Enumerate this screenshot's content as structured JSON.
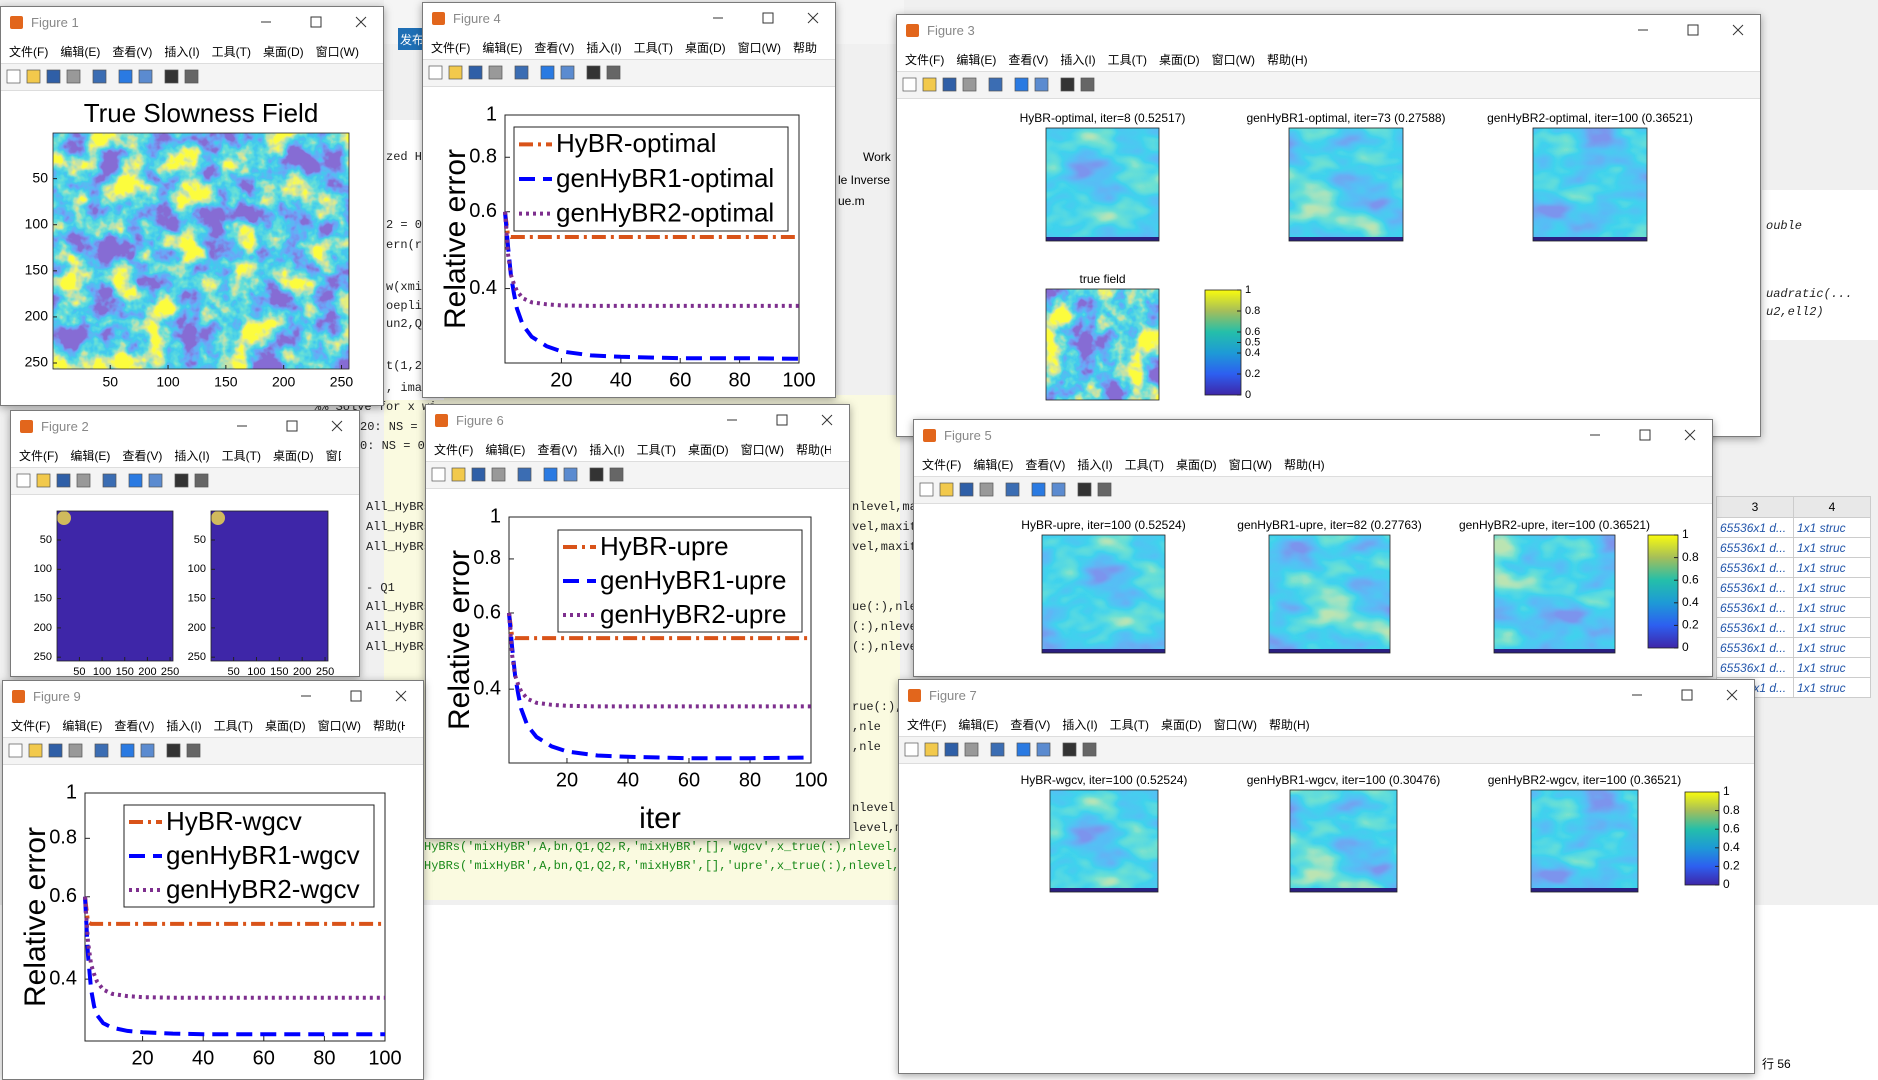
{
  "menu": [
    "文件(F)",
    "编辑(E)",
    "查看(V)",
    "插入(I)",
    "工具(T)",
    "桌面(D)",
    "窗口(W)",
    "帮助(H)"
  ],
  "background": {
    "toolbar_button": "发布",
    "tabs": [
      "Work",
      "le Inverse",
      "ue.m"
    ],
    "code": [
      "zed Hy",
      "2 = 0",
      "ern(r,",
      "w(xmi",
      "oepli",
      "un2,Q",
      "t(1,2",
      ", ima",
      "%% Solve for x wi",
      "20: NS =",
      "0: NS = 0",
      "All_HyBRs",
      "All_HyBRs",
      "All_HyBRs",
      "- Q1",
      "All_HyBRs",
      "All_HyBRs",
      "All_HyBRs",
      "HyBRs('mixHyBR',A,bn,Q1,Q2,R,'mixHyBR',[],'wgcv',x_true(:),nlevel,ma",
      "HyBRs('mixHyBR',A,bn,Q1,Q2,R,'mixHyBR',[],'upre',x_true(:),nlevel,ma",
      "nlevel,ma",
      "vel,maxit",
      "vel,maxit",
      "ue(:),nle",
      "(:),nlevel",
      "(:),nlevel",
      "rue(:),n",
      ",nle",
      ",nle",
      "nlevel",
      "level,m",
      "ouble",
      "uadratic(...",
      "u2,ell2)"
    ],
    "workspace": {
      "headers": [
        "3",
        "4"
      ],
      "rows": [
        [
          "65536x1 d...",
          "1x1 struc"
        ],
        [
          "65536x1 d...",
          "1x1 struc"
        ],
        [
          "65536x1 d...",
          "1x1 struc"
        ],
        [
          "65536x1 d...",
          "1x1 struc"
        ],
        [
          "65536x1 d...",
          "1x1 struc"
        ],
        [
          "65536x1 d...",
          "1x1 struc"
        ],
        [
          "65536x1 d...",
          "1x1 struc"
        ],
        [
          "65536x1 d...",
          "1x1 struc"
        ],
        [
          "65536x1 d...",
          "1x1 struc"
        ]
      ]
    },
    "status": "行 56"
  },
  "windows": [
    {
      "title": "Figure 1",
      "plots": [
        {
          "type": "heatmap",
          "title": "True Slowness Field",
          "xlim": [
            0.5,
            256.5
          ],
          "ylim": [
            0.5,
            256.5
          ],
          "xticks": [
            50,
            100,
            150,
            200,
            250
          ],
          "yticks": [
            50,
            100,
            150,
            200,
            250
          ]
        }
      ]
    },
    {
      "title": "Figure 2",
      "plots": [
        {
          "type": "heatmap",
          "xlim": [
            0.5,
            256.5
          ],
          "ylim": [
            0.5,
            256.5
          ],
          "xticks": [
            50,
            100,
            150,
            200,
            250
          ],
          "yticks": [
            50,
            100,
            150,
            200,
            250
          ]
        },
        {
          "type": "heatmap",
          "xlim": [
            0.5,
            256.5
          ],
          "ylim": [
            0.5,
            256.5
          ],
          "xticks": [
            50,
            100,
            150,
            200,
            250
          ],
          "yticks": [
            50,
            100,
            150,
            200,
            250
          ]
        }
      ]
    },
    {
      "title": "Figure 4",
      "plots": [
        {
          "type": "line",
          "ylabel": "Relative error",
          "log_y": true,
          "xlim": [
            1,
            100
          ],
          "xticks": [
            20,
            40,
            60,
            80,
            100
          ],
          "ylim": [
            0.27,
            1
          ],
          "yticks": [
            0.4,
            0.6,
            0.8,
            1
          ],
          "x": [
            1,
            2,
            3,
            4,
            5,
            7,
            10,
            15,
            20,
            30,
            40,
            60,
            80,
            100
          ],
          "series": [
            {
              "name": "HyBR-optimal",
              "color": "#d95319",
              "style": "dashdot",
              "values": [
                0.6,
                0.53,
                0.525,
                0.525,
                0.525,
                0.525,
                0.525,
                0.525,
                0.525,
                0.525,
                0.525,
                0.525,
                0.525,
                0.525
              ]
            },
            {
              "name": "genHyBR1-optimal",
              "color": "#0000ff",
              "style": "dashed",
              "values": [
                0.6,
                0.5,
                0.43,
                0.39,
                0.36,
                0.33,
                0.31,
                0.295,
                0.287,
                0.281,
                0.279,
                0.277,
                0.277,
                0.276
              ]
            },
            {
              "name": "genHyBR2-optimal",
              "color": "#7e2f8e",
              "style": "dotted",
              "values": [
                0.6,
                0.48,
                0.43,
                0.41,
                0.395,
                0.38,
                0.372,
                0.368,
                0.366,
                0.365,
                0.365,
                0.365,
                0.365,
                0.365
              ]
            }
          ]
        }
      ]
    },
    {
      "title": "Figure 3",
      "plots": [
        {
          "type": "heatmap",
          "title": "HyBR-optimal, iter=8 (0.52517)"
        },
        {
          "type": "heatmap",
          "title": "genHyBR1-optimal, iter=73 (0.27588)"
        },
        {
          "type": "heatmap",
          "title": "genHyBR2-optimal, iter=100 (0.36521)"
        },
        {
          "type": "heatmap",
          "title": "true field"
        },
        {
          "type": "colorbar",
          "lim": [
            0,
            1
          ],
          "ticks": [
            0,
            0.2,
            0.4,
            0.5,
            0.6,
            0.8,
            1
          ]
        }
      ]
    },
    {
      "title": "Figure 5",
      "plots": [
        {
          "type": "heatmap",
          "title": "HyBR-upre, iter=100 (0.52524)"
        },
        {
          "type": "heatmap",
          "title": "genHyBR1-upre, iter=82 (0.27763)"
        },
        {
          "type": "heatmap",
          "title": "genHyBR2-upre, iter=100 (0.36521)"
        },
        {
          "type": "colorbar",
          "lim": [
            0,
            1
          ],
          "ticks": [
            0,
            0.2,
            0.4,
            0.6,
            0.8,
            1
          ]
        }
      ]
    },
    {
      "title": "Figure 6",
      "plots": [
        {
          "type": "line",
          "ylabel": "Relative error",
          "xlabel": "iter",
          "log_y": true,
          "xlim": [
            1,
            100
          ],
          "xticks": [
            20,
            40,
            60,
            80,
            100
          ],
          "ylim": [
            0.27,
            1
          ],
          "yticks": [
            0.4,
            0.6,
            0.8,
            1
          ],
          "x": [
            1,
            2,
            3,
            4,
            5,
            7,
            10,
            15,
            20,
            30,
            40,
            60,
            80,
            100
          ],
          "series": [
            {
              "name": "HyBR-upre",
              "color": "#d95319",
              "style": "dashdot",
              "values": [
                0.6,
                0.53,
                0.525,
                0.525,
                0.525,
                0.525,
                0.525,
                0.525,
                0.525,
                0.525,
                0.525,
                0.525,
                0.525,
                0.525
              ]
            },
            {
              "name": "genHyBR1-upre",
              "color": "#0000ff",
              "style": "dashed",
              "values": [
                0.6,
                0.5,
                0.43,
                0.39,
                0.36,
                0.33,
                0.31,
                0.295,
                0.287,
                0.281,
                0.279,
                0.277,
                0.277,
                0.278
              ]
            },
            {
              "name": "genHyBR2-upre",
              "color": "#7e2f8e",
              "style": "dotted",
              "values": [
                0.6,
                0.48,
                0.43,
                0.41,
                0.395,
                0.38,
                0.372,
                0.368,
                0.366,
                0.365,
                0.365,
                0.365,
                0.365,
                0.365
              ]
            }
          ]
        }
      ]
    },
    {
      "title": "Figure 9",
      "plots": [
        {
          "type": "line",
          "ylabel": "Relative error",
          "log_y": true,
          "xlim": [
            1,
            100
          ],
          "xticks": [
            20,
            40,
            60,
            80,
            100
          ],
          "ylim": [
            0.295,
            1
          ],
          "yticks": [
            0.4,
            0.6,
            0.8,
            1
          ],
          "x": [
            1,
            2,
            3,
            4,
            5,
            7,
            10,
            15,
            20,
            30,
            40,
            60,
            80,
            100
          ],
          "series": [
            {
              "name": "HyBR-wgcv",
              "color": "#d95319",
              "style": "dashdot",
              "values": [
                0.6,
                0.53,
                0.525,
                0.525,
                0.525,
                0.525,
                0.525,
                0.525,
                0.525,
                0.525,
                0.525,
                0.525,
                0.525,
                0.525
              ]
            },
            {
              "name": "genHyBR1-wgcv",
              "color": "#0000ff",
              "style": "dashed",
              "values": [
                0.6,
                0.45,
                0.38,
                0.35,
                0.335,
                0.322,
                0.315,
                0.31,
                0.308,
                0.306,
                0.305,
                0.305,
                0.305,
                0.305
              ]
            },
            {
              "name": "genHyBR2-wgcv",
              "color": "#7e2f8e",
              "style": "dotted",
              "values": [
                0.6,
                0.48,
                0.43,
                0.41,
                0.395,
                0.38,
                0.372,
                0.368,
                0.366,
                0.365,
                0.365,
                0.365,
                0.365,
                0.365
              ]
            }
          ]
        }
      ]
    },
    {
      "title": "Figure 7",
      "plots": [
        {
          "type": "heatmap",
          "title": "HyBR-wgcv, iter=100 (0.52524)"
        },
        {
          "type": "heatmap",
          "title": "genHyBR1-wgcv, iter=100 (0.30476)"
        },
        {
          "type": "heatmap",
          "title": "genHyBR2-wgcv, iter=100 (0.36521)"
        },
        {
          "type": "colorbar",
          "lim": [
            0,
            1
          ],
          "ticks": [
            0,
            0.2,
            0.4,
            0.6,
            0.8,
            1
          ]
        }
      ]
    }
  ]
}
